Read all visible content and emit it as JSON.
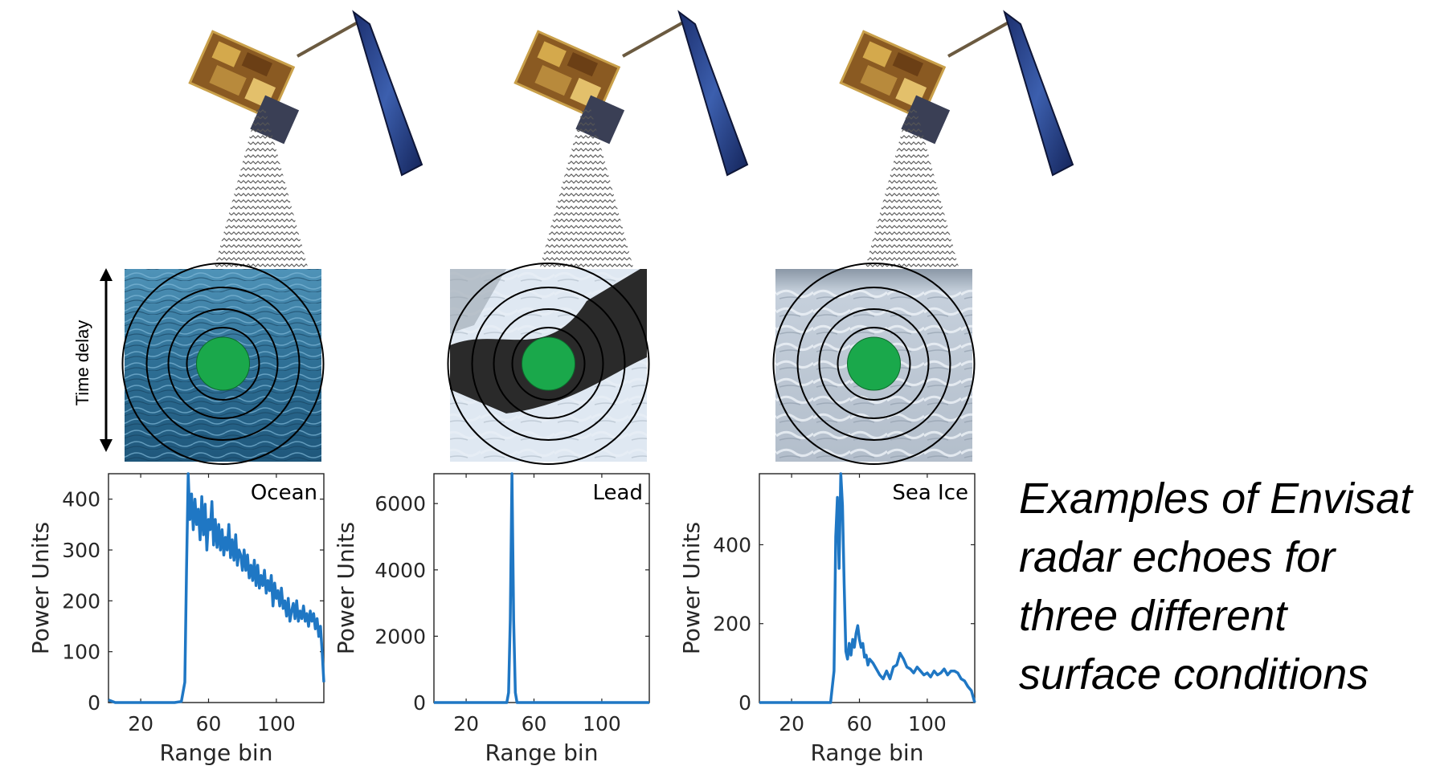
{
  "time_delay_label": "Time delay",
  "caption": [
    "Examples of Envisat",
    "radar echoes for",
    "three different",
    "surface conditions"
  ],
  "colors": {
    "waveform": "#1f77c4",
    "footprint": "#1aa84b",
    "ocean": "#2f6f93",
    "lead_dark": "#2a2a2a",
    "ice": "#c9d3de"
  },
  "icons": [
    "satellite-icon",
    "radar-beam-icon",
    "double-arrow-icon"
  ],
  "panels": [
    {
      "surface": "ocean",
      "chart_data": {
        "type": "line",
        "label": "Ocean",
        "xlabel": "Range bin",
        "ylabel": "Power Units",
        "xlim": [
          1,
          128
        ],
        "ylim": [
          0,
          450
        ],
        "xticks": [
          20,
          60,
          100
        ],
        "yticks": [
          0,
          100,
          200,
          300,
          400
        ],
        "x": [
          1,
          5,
          10,
          15,
          20,
          25,
          30,
          35,
          40,
          44,
          46,
          47,
          48,
          49,
          50,
          51,
          52,
          53,
          54,
          55,
          56,
          57,
          58,
          59,
          60,
          61,
          62,
          63,
          64,
          65,
          66,
          67,
          68,
          69,
          70,
          71,
          72,
          73,
          74,
          75,
          76,
          77,
          78,
          79,
          80,
          81,
          82,
          83,
          84,
          85,
          86,
          87,
          88,
          89,
          90,
          91,
          92,
          93,
          94,
          95,
          96,
          97,
          98,
          99,
          100,
          101,
          102,
          103,
          104,
          105,
          106,
          107,
          108,
          109,
          110,
          111,
          112,
          113,
          114,
          115,
          116,
          117,
          118,
          119,
          120,
          121,
          122,
          123,
          124,
          125,
          126,
          127,
          128
        ],
        "y": [
          5,
          0,
          0,
          0,
          0,
          0,
          0,
          0,
          0,
          2,
          40,
          260,
          450,
          360,
          410,
          340,
          400,
          350,
          380,
          320,
          405,
          330,
          390,
          300,
          360,
          340,
          395,
          310,
          360,
          305,
          350,
          300,
          340,
          290,
          325,
          300,
          350,
          285,
          320,
          280,
          330,
          270,
          300,
          290,
          260,
          300,
          260,
          290,
          245,
          270,
          240,
          280,
          230,
          270,
          225,
          250,
          230,
          260,
          215,
          240,
          220,
          250,
          190,
          235,
          205,
          220,
          190,
          225,
          185,
          200,
          170,
          205,
          160,
          180,
          195,
          165,
          200,
          160,
          180,
          165,
          190,
          160,
          175,
          150,
          180,
          160,
          175,
          145,
          165,
          130,
          150,
          100,
          40
        ]
      }
    },
    {
      "surface": "lead",
      "chart_data": {
        "type": "line",
        "label": "Lead",
        "xlabel": "Range bin",
        "ylabel": "Power Units",
        "xlim": [
          1,
          128
        ],
        "ylim": [
          0,
          6900
        ],
        "xticks": [
          20,
          60,
          100
        ],
        "yticks": [
          0,
          2000,
          4000,
          6000
        ],
        "x": [
          1,
          10,
          20,
          30,
          40,
          44,
          45,
          46,
          47,
          48,
          49,
          50,
          51,
          60,
          80,
          100,
          128
        ],
        "y": [
          0,
          0,
          0,
          0,
          0,
          0,
          300,
          2500,
          6900,
          2500,
          300,
          0,
          0,
          0,
          0,
          0,
          0
        ]
      }
    },
    {
      "surface": "sea-ice",
      "chart_data": {
        "type": "line",
        "label": "Sea Ice",
        "xlabel": "Range bin",
        "ylabel": "Power Units",
        "xlim": [
          1,
          128
        ],
        "ylim": [
          0,
          580
        ],
        "xticks": [
          20,
          60,
          100
        ],
        "yticks": [
          0,
          200,
          400
        ],
        "x": [
          1,
          10,
          20,
          30,
          40,
          43,
          45,
          46,
          47,
          48,
          49,
          50,
          51,
          52,
          53,
          54,
          55,
          56,
          57,
          58,
          59,
          60,
          61,
          62,
          63,
          64,
          65,
          66,
          68,
          70,
          72,
          74,
          76,
          78,
          80,
          82,
          84,
          86,
          88,
          90,
          92,
          94,
          96,
          98,
          100,
          102,
          104,
          106,
          108,
          110,
          112,
          114,
          116,
          118,
          120,
          122,
          124,
          126,
          128
        ],
        "y": [
          0,
          0,
          0,
          0,
          0,
          0,
          80,
          420,
          520,
          340,
          580,
          500,
          300,
          130,
          110,
          150,
          120,
          160,
          140,
          175,
          195,
          160,
          140,
          150,
          115,
          120,
          95,
          110,
          100,
          85,
          70,
          60,
          80,
          60,
          90,
          95,
          125,
          110,
          90,
          85,
          75,
          90,
          80,
          70,
          75,
          65,
          80,
          70,
          75,
          85,
          70,
          80,
          80,
          75,
          60,
          55,
          40,
          30,
          0
        ]
      }
    }
  ]
}
